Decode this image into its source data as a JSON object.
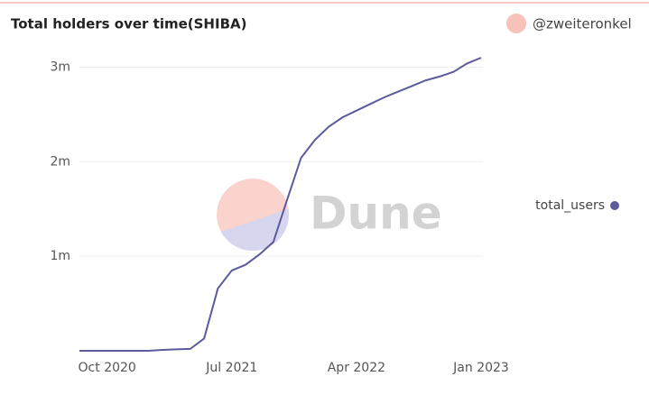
{
  "chart_data": {
    "type": "line",
    "title": "Total holders over time(SHIBA)",
    "author": "@zweiteronkel",
    "watermark": "Dune",
    "x": [
      "2020-08",
      "2020-09",
      "2020-10",
      "2020-11",
      "2020-12",
      "2021-01",
      "2021-02",
      "2021-03",
      "2021-04",
      "2021-05",
      "2021-06",
      "2021-07",
      "2021-08",
      "2021-09",
      "2021-10",
      "2021-11",
      "2021-12",
      "2022-01",
      "2022-02",
      "2022-03",
      "2022-04",
      "2022-05",
      "2022-06",
      "2022-07",
      "2022-08",
      "2022-09",
      "2022-10",
      "2022-11",
      "2022-12",
      "2023-01"
    ],
    "series": [
      {
        "name": "total_users",
        "color": "#5b5b9e",
        "values": [
          0,
          0,
          0,
          0,
          0,
          0,
          10000,
          15000,
          20000,
          130000,
          660000,
          850000,
          910000,
          1020000,
          1150000,
          1600000,
          2040000,
          2230000,
          2370000,
          2470000,
          2540000,
          2610000,
          2680000,
          2740000,
          2800000,
          2860000,
          2900000,
          2950000,
          3040000,
          3100000
        ]
      }
    ],
    "xlim": [
      "2020-08",
      "2023-01"
    ],
    "xticks": [
      {
        "value": "2020-10",
        "label": "Oct 2020"
      },
      {
        "value": "2021-07",
        "label": "Jul 2021"
      },
      {
        "value": "2022-04",
        "label": "Apr 2022"
      },
      {
        "value": "2023-01",
        "label": "Jan 2023"
      }
    ],
    "ylim": [
      0,
      3300000
    ],
    "yticks": [
      {
        "value": 1000000,
        "label": "1m"
      },
      {
        "value": 2000000,
        "label": "2m"
      },
      {
        "value": 3000000,
        "label": "3m"
      }
    ],
    "grid": true,
    "legend": "right"
  }
}
